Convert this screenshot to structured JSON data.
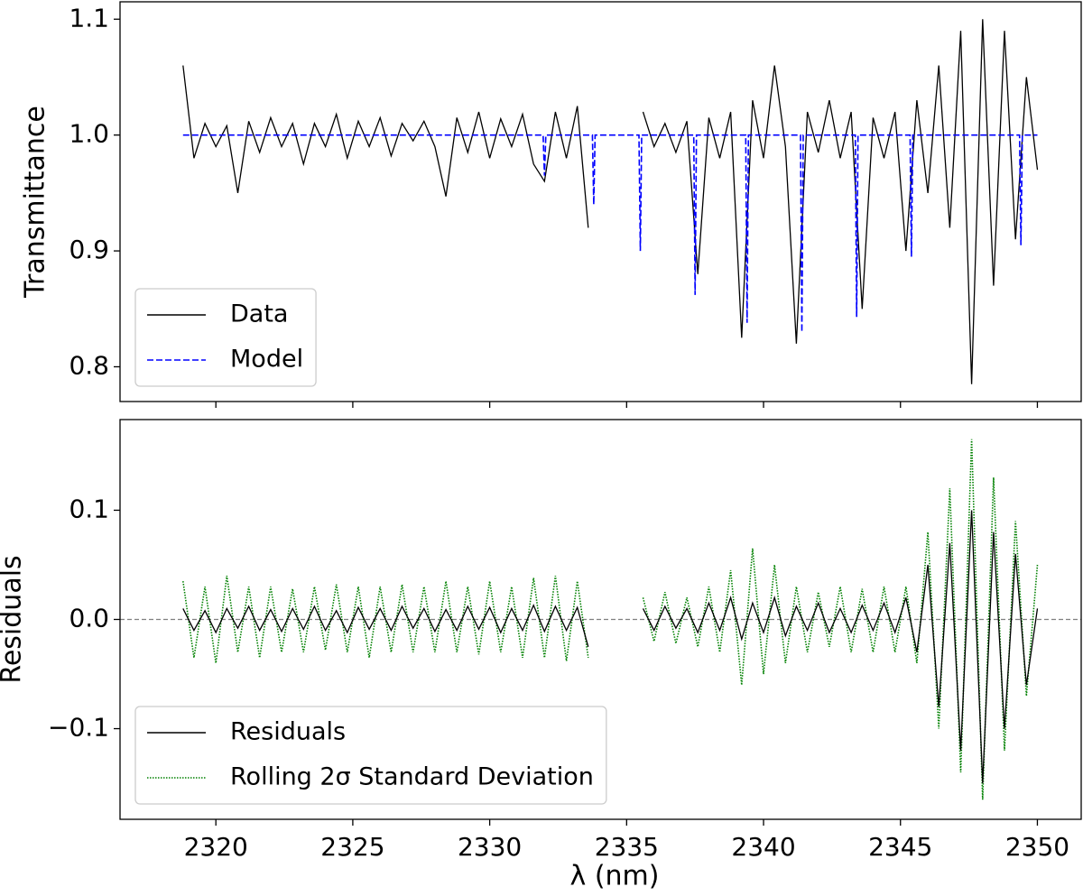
{
  "chart_data": [
    {
      "type": "line",
      "ylabel": "Transmittance",
      "legend": "lower left",
      "xlim": [
        2316.5,
        2351.6
      ],
      "ylim": [
        0.77,
        1.115
      ],
      "xticks": [
        2320,
        2325,
        2330,
        2335,
        2340,
        2345,
        2350
      ],
      "yticks": [
        0.8,
        0.9,
        {
          "value": 1.0,
          "label": "1.0"
        },
        1.1
      ],
      "series": [
        {
          "name": "Data",
          "color": "#000000",
          "dash": "solid",
          "x": [
            2318.8,
            2319.2,
            2319.6,
            2320.0,
            2320.4,
            2320.8,
            2321.2,
            2321.6,
            2322.0,
            2322.4,
            2322.8,
            2323.2,
            2323.6,
            2324.0,
            2324.4,
            2324.8,
            2325.2,
            2325.6,
            2326.0,
            2326.4,
            2326.8,
            2327.2,
            2327.6,
            2328.0,
            2328.4,
            2328.8,
            2329.2,
            2329.6,
            2330.0,
            2330.4,
            2330.8,
            2331.2,
            2331.6,
            2332.0,
            2332.4,
            2332.8,
            2333.2,
            2333.6,
            2334.6,
            2335.6,
            2336.0,
            2336.4,
            2336.8,
            2337.2,
            2337.6,
            2338.0,
            2338.4,
            2338.8,
            2339.2,
            2339.6,
            2340.0,
            2340.4,
            2340.8,
            2341.2,
            2341.6,
            2342.0,
            2342.4,
            2342.8,
            2343.2,
            2343.6,
            2344.0,
            2344.4,
            2344.8,
            2345.2,
            2345.6,
            2346.0,
            2346.4,
            2346.8,
            2347.2,
            2347.6,
            2348.0,
            2348.4,
            2348.8,
            2349.2,
            2349.6,
            2350.0
          ],
          "values": [
            1.06,
            0.98,
            1.01,
            0.99,
            1.008,
            0.95,
            1.012,
            0.985,
            1.015,
            0.99,
            1.01,
            0.975,
            1.01,
            0.99,
            1.018,
            0.98,
            1.012,
            0.99,
            1.015,
            0.982,
            1.01,
            0.995,
            1.012,
            0.99,
            0.947,
            1.015,
            0.985,
            1.02,
            0.98,
            1.014,
            0.99,
            1.018,
            0.975,
            0.96,
            1.02,
            0.98,
            1.025,
            0.92,
            null,
            1.02,
            0.99,
            1.01,
            0.985,
            1.012,
            0.88,
            1.015,
            0.98,
            1.02,
            0.825,
            1.03,
            0.98,
            1.06,
            0.99,
            0.82,
            1.02,
            0.985,
            1.03,
            0.98,
            1.02,
            0.85,
            1.015,
            0.98,
            1.02,
            0.9,
            1.03,
            0.95,
            1.06,
            0.92,
            1.09,
            0.785,
            1.1,
            0.87,
            1.09,
            0.91,
            1.05,
            0.97
          ]
        },
        {
          "name": "Model",
          "color": "#0000ff",
          "dash": "dashed",
          "x": [
            2318.8,
            2331.95,
            2332.0,
            2332.05,
            2333.75,
            2333.8,
            2333.85,
            2335.45,
            2335.5,
            2335.55,
            2337.45,
            2337.5,
            2337.55,
            2339.35,
            2339.4,
            2339.45,
            2341.35,
            2341.4,
            2341.45,
            2343.35,
            2343.4,
            2343.45,
            2345.35,
            2345.4,
            2345.45,
            2349.35,
            2349.4,
            2349.45,
            2350.0
          ],
          "values": [
            1,
            1,
            0.965,
            1,
            1,
            0.94,
            1,
            1,
            0.9,
            1,
            1,
            0.862,
            1,
            1,
            0.838,
            1,
            1,
            0.83,
            1,
            1,
            0.843,
            1,
            1,
            0.895,
            1,
            1,
            0.905,
            1,
            1
          ]
        }
      ]
    },
    {
      "type": "line",
      "ylabel": "Residuals",
      "xlabel": "λ (nm)",
      "legend": "lower left",
      "hline": 0,
      "xlim": [
        2316.5,
        2351.6
      ],
      "ylim": [
        -0.183,
        0.183
      ],
      "xticks": [
        2320,
        2325,
        2330,
        2335,
        2340,
        2345,
        2350
      ],
      "yticks": [
        0.1,
        {
          "value": 0,
          "label": "0.0"
        },
        {
          "value": -0.1,
          "label": "−0.1"
        }
      ],
      "series": [
        {
          "name": "Rolling 2σ Standard Deviation",
          "color": "#008000",
          "dash": "dotted",
          "legend_order": 1,
          "x": [
            2318.8,
            2319.2,
            2319.6,
            2320.0,
            2320.4,
            2320.8,
            2321.2,
            2321.6,
            2322.0,
            2322.4,
            2322.8,
            2323.2,
            2323.6,
            2324.0,
            2324.4,
            2324.8,
            2325.2,
            2325.6,
            2326.0,
            2326.4,
            2326.8,
            2327.2,
            2327.6,
            2328.0,
            2328.4,
            2328.8,
            2329.2,
            2329.6,
            2330.0,
            2330.4,
            2330.8,
            2331.2,
            2331.6,
            2332.0,
            2332.4,
            2332.8,
            2333.2,
            2333.6,
            2334.6,
            2335.6,
            2336.0,
            2336.4,
            2336.8,
            2337.2,
            2337.6,
            2338.0,
            2338.4,
            2338.8,
            2339.2,
            2339.6,
            2340.0,
            2340.4,
            2340.8,
            2341.2,
            2341.6,
            2342.0,
            2342.4,
            2342.8,
            2343.2,
            2343.6,
            2344.0,
            2344.4,
            2344.8,
            2345.2,
            2345.6,
            2346.0,
            2346.4,
            2346.8,
            2347.2,
            2347.6,
            2348.0,
            2348.4,
            2348.8,
            2349.2,
            2349.6,
            2350.0
          ],
          "values": [
            0.035,
            -0.035,
            0.03,
            -0.04,
            0.04,
            -0.03,
            0.03,
            -0.035,
            0.03,
            -0.03,
            0.028,
            -0.03,
            0.03,
            -0.028,
            0.032,
            -0.03,
            0.03,
            -0.035,
            0.03,
            -0.03,
            0.032,
            -0.03,
            0.03,
            -0.03,
            0.035,
            -0.03,
            0.03,
            -0.032,
            0.035,
            -0.03,
            0.03,
            -0.035,
            0.038,
            -0.035,
            0.04,
            -0.038,
            0.035,
            -0.035,
            null,
            0.02,
            -0.02,
            0.025,
            -0.022,
            0.02,
            -0.025,
            0.03,
            -0.03,
            0.045,
            -0.06,
            0.065,
            -0.05,
            0.05,
            -0.04,
            0.03,
            -0.03,
            0.025,
            -0.025,
            0.03,
            -0.03,
            0.028,
            -0.03,
            0.03,
            -0.03,
            0.03,
            -0.04,
            0.08,
            -0.1,
            0.12,
            -0.14,
            0.165,
            -0.165,
            0.13,
            -0.12,
            0.09,
            -0.07,
            0.05
          ]
        },
        {
          "name": "Residuals",
          "color": "#000000",
          "dash": "solid",
          "legend_order": 0,
          "x": [
            2318.8,
            2319.2,
            2319.6,
            2320.0,
            2320.4,
            2320.8,
            2321.2,
            2321.6,
            2322.0,
            2322.4,
            2322.8,
            2323.2,
            2323.6,
            2324.0,
            2324.4,
            2324.8,
            2325.2,
            2325.6,
            2326.0,
            2326.4,
            2326.8,
            2327.2,
            2327.6,
            2328.0,
            2328.4,
            2328.8,
            2329.2,
            2329.6,
            2330.0,
            2330.4,
            2330.8,
            2331.2,
            2331.6,
            2332.0,
            2332.4,
            2332.8,
            2333.2,
            2333.6,
            2334.6,
            2335.6,
            2336.0,
            2336.4,
            2336.8,
            2337.2,
            2337.6,
            2338.0,
            2338.4,
            2338.8,
            2339.2,
            2339.6,
            2340.0,
            2340.4,
            2340.8,
            2341.2,
            2341.6,
            2342.0,
            2342.4,
            2342.8,
            2343.2,
            2343.6,
            2344.0,
            2344.4,
            2344.8,
            2345.2,
            2345.6,
            2346.0,
            2346.4,
            2346.8,
            2347.2,
            2347.6,
            2348.0,
            2348.4,
            2348.8,
            2349.2,
            2349.6,
            2350.0
          ],
          "values": [
            0.01,
            -0.01,
            0.008,
            -0.012,
            0.01,
            -0.008,
            0.012,
            -0.01,
            0.009,
            -0.011,
            0.01,
            -0.009,
            0.012,
            -0.01,
            0.008,
            -0.012,
            0.011,
            -0.009,
            0.01,
            -0.01,
            0.012,
            -0.008,
            0.01,
            -0.011,
            0.009,
            -0.01,
            0.012,
            -0.009,
            0.011,
            -0.012,
            0.01,
            -0.01,
            0.013,
            -0.011,
            0.012,
            -0.01,
            0.011,
            -0.025,
            null,
            0.01,
            -0.01,
            0.012,
            -0.008,
            0.01,
            -0.012,
            0.015,
            -0.01,
            0.02,
            -0.018,
            0.015,
            -0.012,
            0.02,
            -0.015,
            0.012,
            -0.01,
            0.015,
            -0.012,
            0.01,
            -0.012,
            0.013,
            -0.01,
            0.015,
            -0.012,
            0.02,
            -0.03,
            0.05,
            -0.08,
            0.07,
            -0.12,
            0.1,
            -0.15,
            0.08,
            -0.1,
            0.06,
            -0.06,
            0.01
          ]
        }
      ]
    }
  ]
}
